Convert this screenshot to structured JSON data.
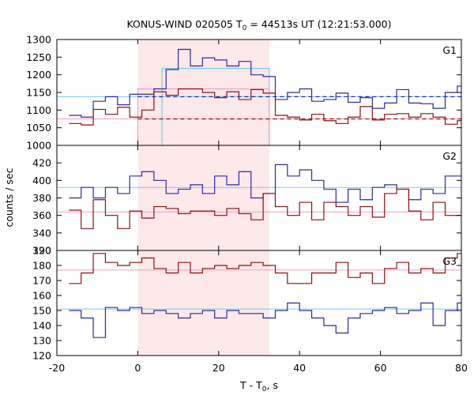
{
  "chart_data": {
    "type": "line",
    "title_main": "KONUS-WIND 020505 T",
    "title_sub": "0",
    "title_rest": " = 44513s UT (12:21:53.000)",
    "xlabel_main": "T - T",
    "xlabel_sub": "0",
    "xlabel_rest": ", s",
    "ylabel": "counts / sec",
    "xlim": [
      -20,
      80
    ],
    "x_ticks": [
      -20,
      0,
      20,
      40,
      60,
      80
    ],
    "shaded_interval": [
      0,
      32.5
    ],
    "colors": {
      "blue": "#2b2b9a",
      "red": "#8b1010",
      "light_blue": "#7ec8e8",
      "light_red": "#f0a0c0",
      "shade": "#fde8ea"
    },
    "panels": [
      {
        "label": "G1",
        "ylim": [
          1000,
          1300
        ],
        "y_ticks": [
          1000,
          1050,
          1100,
          1150,
          1200,
          1250,
          1300
        ],
        "bin_edges": [
          -17,
          -14,
          -11,
          -8,
          -5,
          -2,
          1,
          4,
          7,
          10,
          13,
          16,
          19,
          22,
          25,
          28,
          31,
          34,
          37,
          40,
          43,
          46,
          49,
          52,
          55,
          58,
          61,
          64,
          67,
          70,
          73,
          76,
          79,
          82
        ],
        "series": [
          {
            "color_key": "blue",
            "values": [
              1085,
              1080,
              1125,
              1138,
              1115,
              1145,
              1145,
              1160,
              1215,
              1272,
              1225,
              1248,
              1242,
              1225,
              1238,
              1200,
              1195,
              1130,
              1150,
              1160,
              1125,
              1130,
              1148,
              1122,
              1135,
              1105,
              1120,
              1158,
              1120,
              1118,
              1105,
              1150,
              1168
            ]
          },
          {
            "color_key": "red",
            "values": [
              1062,
              1058,
              1102,
              1088,
              1108,
              1080,
              1100,
              1152,
              1142,
              1160,
              1160,
              1150,
              1135,
              1152,
              1130,
              1158,
              1148,
              1085,
              1080,
              1072,
              1088,
              1070,
              1062,
              1080,
              1110,
              1072,
              1088,
              1090,
              1080,
              1090,
              1080,
              1060,
              1070
            ]
          }
        ],
        "flat_lines": [
          {
            "color_key": "light_blue",
            "value": 1138
          },
          {
            "color_key": "light_red",
            "value": 1075
          }
        ],
        "dashed_lines": [
          {
            "color_key": "blue",
            "value": 1138,
            "x": [
              0,
              80
            ]
          },
          {
            "color_key": "red",
            "value": 1075,
            "x": [
              0,
              80
            ]
          }
        ],
        "boxes": [
          {
            "color_key": "light_blue",
            "x": [
              6,
              32.5
            ],
            "value": 1218
          },
          {
            "color_key": "light_red",
            "x": [
              0,
              32.5
            ],
            "value": 1160
          }
        ]
      },
      {
        "label": "G2",
        "ylim": [
          320,
          440
        ],
        "y_ticks": [
          320,
          340,
          360,
          380,
          400,
          420
        ],
        "bin_edges": [
          -17,
          -14,
          -11,
          -8,
          -5,
          -2,
          1,
          4,
          7,
          10,
          13,
          16,
          19,
          22,
          25,
          28,
          31,
          34,
          37,
          40,
          43,
          46,
          49,
          52,
          55,
          58,
          61,
          64,
          67,
          70,
          73,
          76,
          79,
          82
        ],
        "series": [
          {
            "color_key": "blue",
            "values": [
              380,
              392,
              380,
              392,
              385,
              405,
              410,
              400,
              385,
              390,
              395,
              385,
              405,
              395,
              410,
              380,
              385,
              418,
              405,
              412,
              400,
              390,
              375,
              390,
              378,
              392,
              395,
              390,
              378,
              390,
              385,
              405,
              405
            ]
          },
          {
            "color_key": "red",
            "values": [
              366,
              345,
              378,
              360,
              345,
              365,
              357,
              370,
              368,
              362,
              365,
              365,
              360,
              368,
              362,
              355,
              385,
              370,
              360,
              375,
              355,
              375,
              370,
              360,
              370,
              358,
              385,
              390,
              365,
              355,
              375,
              360,
              360
            ]
          }
        ],
        "flat_lines": [
          {
            "color_key": "light_blue",
            "value": 392
          },
          {
            "color_key": "light_red",
            "value": 364
          }
        ],
        "dashed_lines": [],
        "boxes": []
      },
      {
        "label": "G3",
        "ylim": [
          120,
          190
        ],
        "y_ticks": [
          120,
          130,
          140,
          150,
          160,
          170,
          180,
          190
        ],
        "bin_edges": [
          -17,
          -14,
          -11,
          -8,
          -5,
          -2,
          1,
          4,
          7,
          10,
          13,
          16,
          19,
          22,
          25,
          28,
          31,
          34,
          37,
          40,
          43,
          46,
          49,
          52,
          55,
          58,
          61,
          64,
          67,
          70,
          73,
          76,
          79,
          82
        ],
        "series": [
          {
            "color_key": "blue",
            "values": [
              150,
              145,
              132,
              152,
              150,
              152,
              148,
              150,
              148,
              145,
              148,
              150,
              145,
              150,
              148,
              148,
              145,
              150,
              155,
              150,
              145,
              140,
              135,
              145,
              148,
              150,
              152,
              148,
              150,
              155,
              140,
              150,
              155
            ]
          },
          {
            "color_key": "red",
            "values": [
              168,
              175,
              188,
              182,
              180,
              182,
              185,
              178,
              175,
              182,
              175,
              178,
              180,
              178,
              180,
              182,
              180,
              175,
              168,
              168,
              175,
              175,
              182,
              172,
              175,
              168,
              178,
              182,
              175,
              178,
              175,
              185,
              188
            ]
          }
        ],
        "flat_lines": [
          {
            "color_key": "light_blue",
            "value": 151
          },
          {
            "color_key": "light_red",
            "value": 177
          }
        ],
        "dashed_lines": [],
        "boxes": []
      }
    ]
  }
}
